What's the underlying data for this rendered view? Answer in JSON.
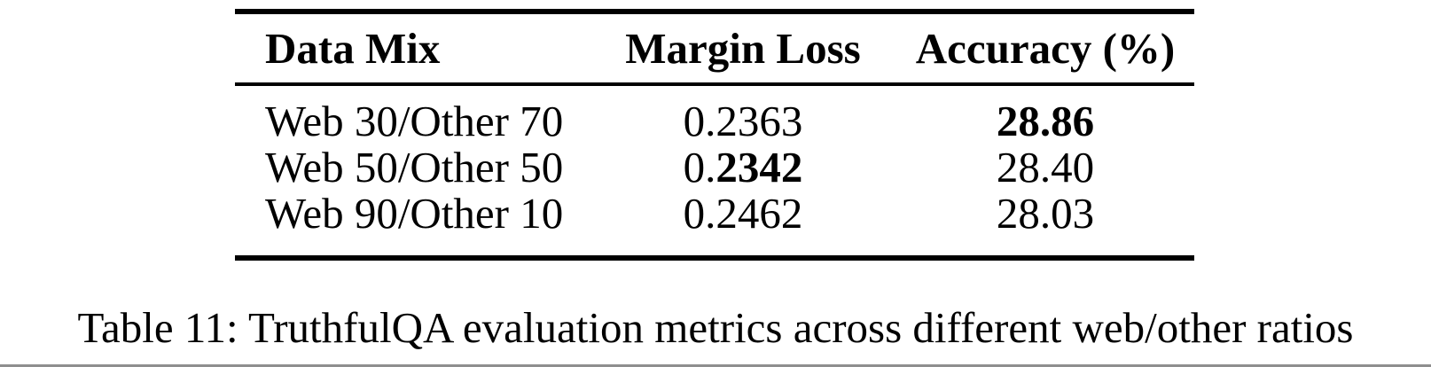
{
  "page": {
    "background": "#ffffff",
    "bottom_border_color": "#8f8f8f",
    "text_color": "#000000",
    "rule_color": "#000000"
  },
  "table": {
    "columns": [
      {
        "label": "Data Mix"
      },
      {
        "label": "Margin Loss"
      },
      {
        "label": "Accuracy (%)"
      }
    ],
    "rows": [
      {
        "mix": "Web 30/Other 70",
        "margin_prefix": "0.2363",
        "margin_bold": "",
        "accuracy": "28.86",
        "accuracy_bold": true
      },
      {
        "mix": "Web 50/Other 50",
        "margin_prefix": "0.",
        "margin_bold": "2342",
        "accuracy": "28.40",
        "accuracy_bold": false
      },
      {
        "mix": "Web 90/Other 10",
        "margin_prefix": "0.2462",
        "margin_bold": "",
        "accuracy": "28.03",
        "accuracy_bold": false
      }
    ]
  },
  "caption": {
    "text": "Table 11: TruthfulQA evaluation metrics across different web/other ratios"
  },
  "chart_data": {
    "type": "table",
    "title": "Table 11: TruthfulQA evaluation metrics across different web/other ratios",
    "columns": [
      "Data Mix",
      "Margin Loss",
      "Accuracy (%)"
    ],
    "rows": [
      [
        "Web 30/Other 70",
        0.2363,
        28.86
      ],
      [
        "Web 50/Other 50",
        0.2342,
        28.4
      ],
      [
        "Web 90/Other 10",
        0.2462,
        28.03
      ]
    ],
    "emphasis": [
      "Accuracy 28.86 (Web 30/Other 70) shown in bold",
      "Margin Loss digits 2342 (Web 50/Other 50) shown in bold"
    ]
  }
}
